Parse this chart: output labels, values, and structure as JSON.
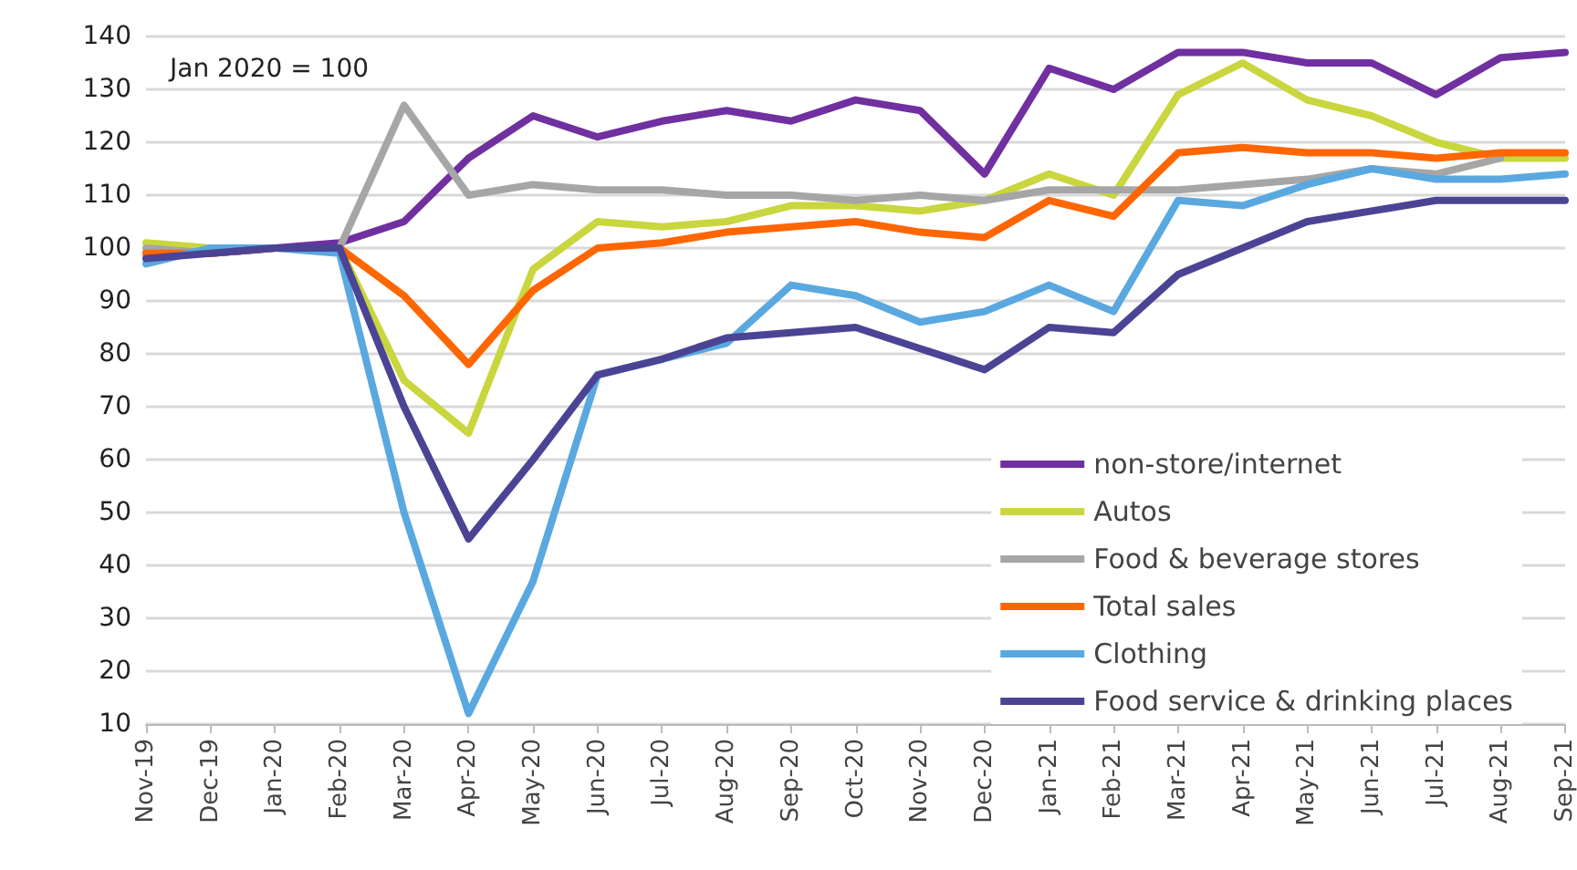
{
  "chart_data": {
    "type": "line",
    "annotations": [
      "Jan 2020 = 100"
    ],
    "categories": [
      "Nov-19",
      "Dec-19",
      "Jan-20",
      "Feb-20",
      "Mar-20",
      "Apr-20",
      "May-20",
      "Jun-20",
      "Jul-20",
      "Aug-20",
      "Sep-20",
      "Oct-20",
      "Nov-20",
      "Dec-20",
      "Jan-21",
      "Feb-21",
      "Mar-21",
      "Apr-21",
      "May-21",
      "Jun-21",
      "Jul-21",
      "Aug-21",
      "Sep-21"
    ],
    "series": [
      {
        "name": "non-store/internet",
        "color": "#7030a0",
        "values": [
          99,
          99,
          100,
          101,
          105,
          117,
          125,
          121,
          124,
          126,
          124,
          128,
          126,
          114,
          134,
          130,
          137,
          137,
          135,
          135,
          129,
          136,
          137
        ]
      },
      {
        "name": "Autos",
        "color": "#c9d63e",
        "values": [
          101,
          100,
          100,
          100,
          75,
          65,
          96,
          105,
          104,
          105,
          108,
          108,
          107,
          109,
          114,
          110,
          129,
          135,
          128,
          125,
          120,
          117,
          117
        ]
      },
      {
        "name": "Food & beverage stores",
        "color": "#a6a6a6",
        "values": [
          100,
          99,
          100,
          100,
          127,
          110,
          112,
          111,
          111,
          110,
          110,
          109,
          110,
          109,
          111,
          111,
          111,
          112,
          113,
          115,
          114,
          117,
          null
        ]
      },
      {
        "name": "Total sales",
        "color": "#ff6600",
        "values": [
          99,
          99,
          100,
          100,
          91,
          78,
          92,
          100,
          101,
          103,
          104,
          105,
          103,
          102,
          109,
          106,
          118,
          119,
          118,
          118,
          117,
          118,
          118
        ]
      },
      {
        "name": "Clothing",
        "color": "#5aa8e0",
        "values": [
          97,
          100,
          100,
          99,
          50,
          12,
          37,
          76,
          79,
          82,
          93,
          91,
          86,
          88,
          93,
          88,
          109,
          108,
          112,
          115,
          113,
          113,
          114
        ]
      },
      {
        "name": "Food service & drinking places",
        "color": "#4b4494",
        "values": [
          98,
          99,
          100,
          100,
          70,
          45,
          60,
          76,
          79,
          83,
          84,
          85,
          81,
          77,
          85,
          84,
          95,
          100,
          105,
          107,
          109,
          109,
          109
        ]
      }
    ],
    "ylim": [
      10,
      140
    ],
    "yticks": [
      10,
      20,
      30,
      40,
      50,
      60,
      70,
      80,
      90,
      100,
      110,
      120,
      130,
      140
    ],
    "grid": "y",
    "legend": "bottom right",
    "marker": "none",
    "line_style": "solid"
  }
}
